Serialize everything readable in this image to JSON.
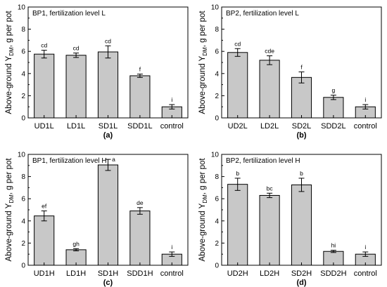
{
  "chart_data": [
    {
      "type": "bar",
      "title": "BP1, fertilization level L",
      "ylabel": "Above-ground Y_DM, g per pot",
      "ylim": [
        0,
        10
      ],
      "yticks": [
        "0",
        "2",
        "4",
        "6",
        "8",
        "10"
      ],
      "categories": [
        "UD1L",
        "LD1L",
        "SD1L",
        "SDD1L",
        "control"
      ],
      "values": [
        5.75,
        5.65,
        5.95,
        3.8,
        1.0
      ],
      "errors": [
        0.35,
        0.2,
        0.55,
        0.15,
        0.2
      ],
      "letters": [
        "cd",
        "cd",
        "cd",
        "f",
        "i"
      ],
      "panel_label": "(a)"
    },
    {
      "type": "bar",
      "title": "BP2, fertilization level L",
      "ylabel": "Above-ground Y_DM, g per pot",
      "ylim": [
        0,
        10
      ],
      "yticks": [
        "0",
        "2",
        "4",
        "6",
        "8",
        "10"
      ],
      "categories": [
        "UD2L",
        "LD2L",
        "SD2L",
        "SDD2L",
        "control"
      ],
      "values": [
        5.9,
        5.2,
        3.65,
        1.85,
        1.0
      ],
      "errors": [
        0.35,
        0.4,
        0.5,
        0.2,
        0.2
      ],
      "letters": [
        "cd",
        "cde",
        "f",
        "g",
        "i"
      ],
      "panel_label": "(b)"
    },
    {
      "type": "bar",
      "title": "BP1, fertilization level H",
      "ylabel": "Above-ground Y_DM, g per pot",
      "ylim": [
        0,
        10
      ],
      "yticks": [
        "0",
        "2",
        "4",
        "6",
        "8",
        "10"
      ],
      "categories": [
        "UD1H",
        "LD1H",
        "SD1H",
        "SDD1H",
        "control"
      ],
      "values": [
        4.45,
        1.4,
        9.05,
        4.9,
        1.0
      ],
      "errors": [
        0.45,
        0.1,
        0.5,
        0.3,
        0.2
      ],
      "letters": [
        "ef",
        "gh",
        "a",
        "de",
        "i"
      ],
      "panel_label": "(c)"
    },
    {
      "type": "bar",
      "title": "BP2, fertilization level H",
      "ylabel": "Above-ground Y_DM, g per pot",
      "ylim": [
        0,
        10
      ],
      "yticks": [
        "0",
        "2",
        "4",
        "6",
        "8",
        "10"
      ],
      "categories": [
        "UD2H",
        "LD2H",
        "SD2H",
        "SDD2H",
        "control"
      ],
      "values": [
        7.3,
        6.3,
        7.25,
        1.25,
        1.0
      ],
      "errors": [
        0.55,
        0.2,
        0.6,
        0.1,
        0.2
      ],
      "letters": [
        "b",
        "bc",
        "b",
        "hi",
        "i"
      ],
      "panel_label": "(d)"
    }
  ]
}
